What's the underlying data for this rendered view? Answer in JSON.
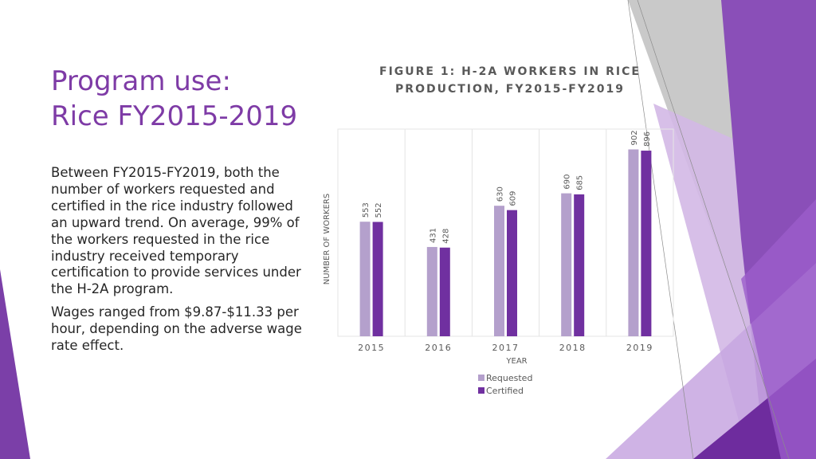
{
  "slide": {
    "title_line1": "Program use:",
    "title_line2": "Rice FY2015-2019",
    "paragraphs": [
      "Between FY2015-FY2019, both the number of workers requested and certified in the rice industry followed an upward trend. On average, 99% of the workers requested in the rice industry received temporary certification to provide services under the H-2A program.",
      "Wages ranged from $9.87-$11.33 per hour, depending on the adverse wage rate effect."
    ],
    "colors": {
      "title": "#7E3BA6",
      "accent_dark": "#7030A0",
      "accent_light": "#B4A0CC"
    }
  },
  "chart_data": {
    "type": "bar",
    "title_line1": "FIGURE 1: H-2A WORKERS IN RICE",
    "title_line2": "PRODUCTION, FY2015-FY2019",
    "xlabel": "YEAR",
    "ylabel": "NUMBER OF WORKERS",
    "categories": [
      "2015",
      "2016",
      "2017",
      "2018",
      "2019"
    ],
    "series": [
      {
        "name": "Requested",
        "color": "#B4A0CC",
        "values": [
          553,
          431,
          630,
          690,
          902
        ]
      },
      {
        "name": "Certified",
        "color": "#7030A0",
        "values": [
          552,
          428,
          609,
          685,
          896
        ]
      }
    ],
    "ylim": [
      0,
      1000
    ],
    "grid": false,
    "legend_position": "bottom"
  }
}
